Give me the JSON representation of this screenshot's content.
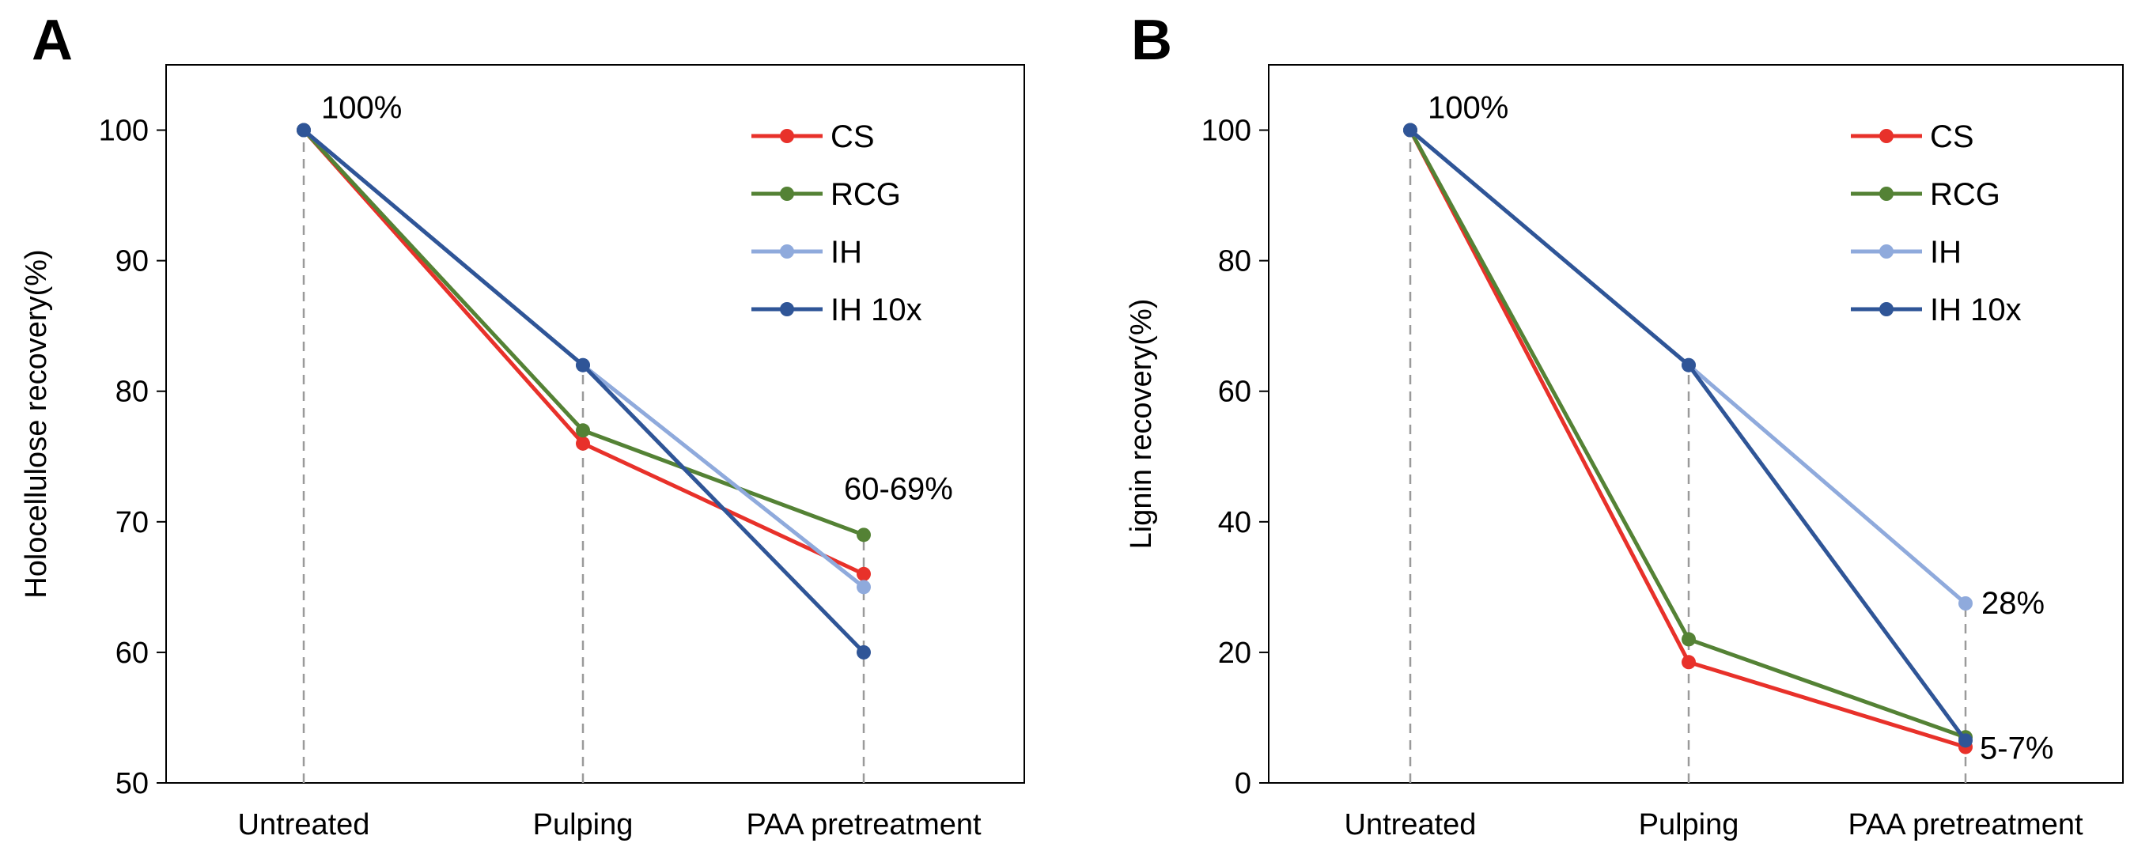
{
  "chart_data": [
    {
      "panel": "A",
      "type": "line",
      "categories": [
        "Untreated",
        "Pulping",
        "PAA pretreatment"
      ],
      "ylabel": "Holocellulose recovery(%)",
      "xlabel": "",
      "ylim": [
        50,
        105
      ],
      "yticks": [
        50,
        60,
        70,
        80,
        90,
        100
      ],
      "grid": false,
      "legend": "top-right",
      "series": [
        {
          "name": "CS",
          "color": "#e8312a",
          "values": [
            100,
            76,
            66
          ]
        },
        {
          "name": "RCG",
          "color": "#548235",
          "values": [
            100,
            77,
            69
          ]
        },
        {
          "name": "IH",
          "color": "#8faadc",
          "values": [
            100,
            82,
            65
          ]
        },
        {
          "name": "IH 10x",
          "color": "#2f5597",
          "values": [
            100,
            82,
            60
          ]
        }
      ],
      "annotations": [
        {
          "text": "100%",
          "at_category": "Untreated",
          "at_value": 100
        },
        {
          "text": "60-69%",
          "at_category": "PAA pretreatment",
          "at_value": 69
        }
      ]
    },
    {
      "panel": "B",
      "type": "line",
      "categories": [
        "Untreated",
        "Pulping",
        "PAA pretreatment"
      ],
      "ylabel": "Lignin recovery(%)",
      "xlabel": "",
      "ylim": [
        0,
        110
      ],
      "yticks": [
        0,
        20,
        40,
        60,
        80,
        100
      ],
      "grid": false,
      "legend": "top-right",
      "series": [
        {
          "name": "CS",
          "color": "#e8312a",
          "values": [
            100,
            18.5,
            5.5
          ]
        },
        {
          "name": "RCG",
          "color": "#548235",
          "values": [
            100,
            22,
            7
          ]
        },
        {
          "name": "IH",
          "color": "#8faadc",
          "values": [
            100,
            64,
            27.5
          ]
        },
        {
          "name": "IH 10x",
          "color": "#2f5597",
          "values": [
            100,
            64,
            6.5
          ]
        }
      ],
      "annotations": [
        {
          "text": "100%",
          "at_category": "Untreated",
          "at_value": 100
        },
        {
          "text": "28%",
          "at_category": "PAA pretreatment",
          "at_value": 27.5
        },
        {
          "text": "5-7%",
          "at_category": "PAA pretreatment",
          "at_value": 5.5
        }
      ]
    }
  ]
}
